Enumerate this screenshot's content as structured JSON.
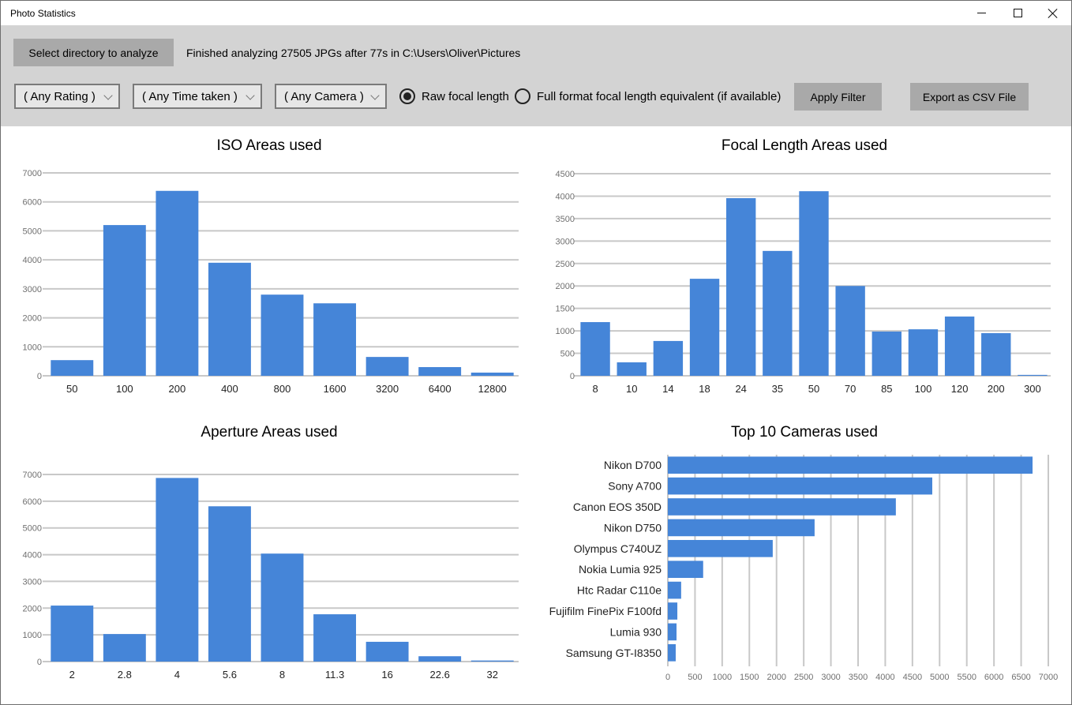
{
  "window": {
    "title": "Photo Statistics",
    "controls": [
      "minimize-icon",
      "maximize-icon",
      "close-icon"
    ]
  },
  "toolbar": {
    "select_dir_label": "Select directory to analyze",
    "status_text": "Finished analyzing 27505 JPGs after 77s in C:\\Users\\Oliver\\Pictures",
    "rating_filter": "( Any Rating )",
    "time_filter": "( Any Time taken )",
    "camera_filter": "( Any Camera )",
    "radio_raw_label": "Raw focal length",
    "radio_full_label": "Full format focal length equivalent (if available)",
    "radio_selected": "raw",
    "apply_label": "Apply Filter",
    "export_label": "Export as CSV File"
  },
  "colors": {
    "bar": "#4585d8",
    "grid": "#c8c8c8",
    "toolbar_bg": "#d3d3d3",
    "button_bg": "#a9a9a9"
  },
  "chart_data": [
    {
      "id": "iso",
      "type": "bar",
      "title": "ISO Areas used",
      "categories": [
        "50",
        "100",
        "200",
        "400",
        "800",
        "1600",
        "3200",
        "6400",
        "12800"
      ],
      "values": [
        540,
        5200,
        6380,
        3900,
        2800,
        2500,
        650,
        300,
        110
      ],
      "yticks": [
        "0",
        "1000",
        "2000",
        "3000",
        "4000",
        "5000",
        "6000",
        "7000"
      ],
      "ylim": [
        0,
        7000
      ],
      "grid": true,
      "xlabel": "",
      "ylabel": ""
    },
    {
      "id": "focal",
      "type": "bar",
      "title": "Focal Length Areas used",
      "categories": [
        "8",
        "10",
        "14",
        "18",
        "24",
        "35",
        "50",
        "70",
        "85",
        "100",
        "120",
        "200",
        "300"
      ],
      "values": [
        1195,
        300,
        775,
        2160,
        3955,
        2780,
        4110,
        2000,
        985,
        1035,
        1320,
        950,
        20
      ],
      "yticks": [
        "0",
        "500",
        "1000",
        "1500",
        "2000",
        "2500",
        "3000",
        "3500",
        "4000",
        "4500"
      ],
      "ylim": [
        0,
        4500
      ],
      "grid": true,
      "xlabel": "",
      "ylabel": ""
    },
    {
      "id": "aperture",
      "type": "bar",
      "title": "Aperture Areas used",
      "categories": [
        "2",
        "2.8",
        "4",
        "5.6",
        "8",
        "11.3",
        "16",
        "22.6",
        "32"
      ],
      "values": [
        2095,
        1030,
        6870,
        5810,
        4040,
        1770,
        740,
        200,
        40
      ],
      "yticks": [
        "0",
        "1000",
        "2000",
        "3000",
        "4000",
        "5000",
        "6000",
        "7000"
      ],
      "ylim": [
        0,
        7000
      ],
      "grid": true,
      "xlabel": "",
      "ylabel": ""
    },
    {
      "id": "cameras",
      "type": "bar",
      "orientation": "horizontal",
      "title": "Top 10 Cameras used",
      "categories": [
        "Nikon D700",
        "Sony A700",
        "Canon EOS 350D",
        "Nikon D750",
        "Olympus C740UZ",
        "Nokia Lumia 925",
        "Htc Radar C110e",
        "Fujifilm FinePix F100fd",
        "Lumia 930",
        "Samsung GT-I8350"
      ],
      "values": [
        6710,
        4865,
        4195,
        2700,
        1930,
        650,
        245,
        175,
        160,
        145
      ],
      "xticks": [
        "0",
        "500",
        "1000",
        "1500",
        "2000",
        "2500",
        "3000",
        "3500",
        "4000",
        "4500",
        "5000",
        "5500",
        "6000",
        "6500",
        "7000"
      ],
      "xlim": [
        0,
        7000
      ],
      "grid": true,
      "xlabel": "",
      "ylabel": ""
    }
  ]
}
